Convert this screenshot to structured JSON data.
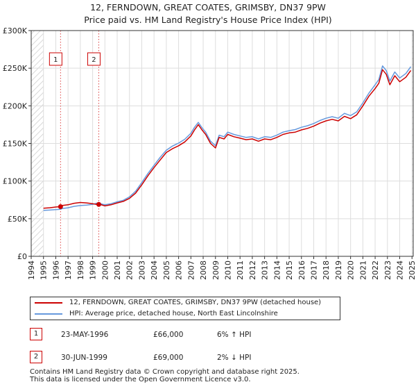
{
  "title_line1": "12, FERNDOWN, GREAT COATES, GRIMSBY, DN37 9PW",
  "title_line2": "Price paid vs. HM Land Registry's House Price Index (HPI)",
  "colors": {
    "property": "#cc0000",
    "hpi": "#6699dd",
    "sale_vline": "#dd4444",
    "grid": "#dddddd",
    "hatch": "#cccccc"
  },
  "chart_data": {
    "type": "line",
    "title": "12, FERNDOWN, GREAT COATES, GRIMSBY, DN37 9PW — Price paid vs. HM Land Registry's House Price Index (HPI)",
    "xlabel": "",
    "ylabel": "",
    "xlim": [
      1994,
      2025.1
    ],
    "ylim": [
      0,
      300000
    ],
    "y_ticks": [
      0,
      50000,
      100000,
      150000,
      200000,
      250000,
      300000
    ],
    "y_tick_labels": [
      "£0",
      "£50K",
      "£100K",
      "£150K",
      "£200K",
      "£250K",
      "£300K"
    ],
    "x_ticks": [
      1994,
      1995,
      1996,
      1997,
      1998,
      1999,
      2000,
      2001,
      2002,
      2003,
      2004,
      2005,
      2006,
      2007,
      2008,
      2009,
      2010,
      2011,
      2012,
      2013,
      2014,
      2015,
      2016,
      2017,
      2018,
      2019,
      2020,
      2021,
      2022,
      2023,
      2024,
      2025
    ],
    "grid": true,
    "hatched_regions": [
      [
        1994,
        1995
      ],
      [
        2025,
        2025.1
      ]
    ],
    "series": [
      {
        "name": "12, FERNDOWN, GREAT COATES, GRIMSBY, DN37 9PW (detached house)",
        "color": "#cc0000",
        "x": [
          1995,
          1995.5,
          1996,
          1996.4,
          1996.5,
          1997,
          1997.5,
          1998,
          1998.5,
          1999,
          1999.3,
          1999.5,
          2000,
          2000.5,
          2001,
          2001.5,
          2002,
          2002.5,
          2003,
          2003.5,
          2004,
          2004.5,
          2005,
          2005.5,
          2006,
          2006.5,
          2007,
          2007.3,
          2007.6,
          2007.9,
          2008.2,
          2008.6,
          2009,
          2009.3,
          2009.7,
          2010,
          2010.5,
          2011,
          2011.5,
          2012,
          2012.5,
          2013,
          2013.5,
          2014,
          2014.5,
          2015,
          2015.5,
          2016,
          2016.5,
          2017,
          2017.5,
          2018,
          2018.5,
          2019,
          2019.5,
          2020,
          2020.5,
          2021,
          2021.5,
          2022,
          2022.3,
          2022.6,
          2022.9,
          2023.2,
          2023.6,
          2024,
          2024.5,
          2024.9
        ],
        "y": [
          64000,
          64500,
          65500,
          66000,
          67500,
          68500,
          70500,
          71500,
          71000,
          70000,
          69000,
          69500,
          67000,
          68500,
          71000,
          73000,
          77000,
          84000,
          95000,
          107000,
          118000,
          128000,
          138000,
          143000,
          147000,
          152000,
          160000,
          168000,
          175000,
          168000,
          162000,
          150000,
          144000,
          158000,
          156000,
          162000,
          159000,
          157000,
          155000,
          156000,
          153000,
          156000,
          155000,
          158000,
          162000,
          164000,
          165000,
          168000,
          170000,
          173000,
          177000,
          180000,
          182000,
          180000,
          186000,
          183000,
          188000,
          200000,
          213000,
          223000,
          230000,
          248000,
          242000,
          228000,
          240000,
          232000,
          238000,
          247000
        ]
      },
      {
        "name": "HPI: Average price, detached house, North East Lincolnshire",
        "color": "#6699dd",
        "x": [
          1995,
          1995.5,
          1996,
          1996.4,
          1996.5,
          1997,
          1997.5,
          1998,
          1998.5,
          1999,
          1999.3,
          1999.5,
          2000,
          2000.5,
          2001,
          2001.5,
          2002,
          2002.5,
          2003,
          2003.5,
          2004,
          2004.5,
          2005,
          2005.5,
          2006,
          2006.5,
          2007,
          2007.3,
          2007.6,
          2007.9,
          2008.2,
          2008.6,
          2009,
          2009.3,
          2009.7,
          2010,
          2010.5,
          2011,
          2011.5,
          2012,
          2012.5,
          2013,
          2013.5,
          2014,
          2014.5,
          2015,
          2015.5,
          2016,
          2016.5,
          2017,
          2017.5,
          2018,
          2018.5,
          2019,
          2019.5,
          2020,
          2020.5,
          2021,
          2021.5,
          2022,
          2022.3,
          2022.6,
          2022.9,
          2023.2,
          2023.6,
          2024,
          2024.5,
          2024.9
        ],
        "y": [
          61000,
          61500,
          62000,
          62500,
          63500,
          64500,
          66500,
          67500,
          68000,
          69000,
          70500,
          70500,
          68500,
          70000,
          72500,
          74500,
          79000,
          86500,
          98000,
          110000,
          121000,
          131500,
          141000,
          146500,
          150500,
          155500,
          163500,
          171500,
          178000,
          171000,
          165000,
          153000,
          147000,
          161000,
          159000,
          165000,
          162000,
          160000,
          158000,
          159000,
          156000,
          159000,
          158000,
          161000,
          165000,
          167000,
          168500,
          171500,
          173500,
          176500,
          180500,
          183500,
          185500,
          183500,
          190000,
          187000,
          192000,
          204000,
          217000,
          228000,
          235000,
          253000,
          247000,
          233000,
          245000,
          237000,
          243000,
          252000
        ]
      }
    ],
    "sales": [
      {
        "label": "1",
        "x": 1996.39,
        "y": 66000
      },
      {
        "label": "2",
        "x": 1999.5,
        "y": 69000
      }
    ],
    "legend_position": "below"
  },
  "legend": {
    "property_label": "12, FERNDOWN, GREAT COATES, GRIMSBY, DN37 9PW (detached house)",
    "hpi_label": "HPI: Average price, detached house, North East Lincolnshire"
  },
  "sales_table": [
    {
      "num": "1",
      "date": "23-MAY-1996",
      "price": "£66,000",
      "hpi": "6% ↑ HPI"
    },
    {
      "num": "2",
      "date": "30-JUN-1999",
      "price": "£69,000",
      "hpi": "2% ↓ HPI"
    }
  ],
  "footer_line1": "Contains HM Land Registry data © Crown copyright and database right 2025.",
  "footer_line2": "This data is licensed under the Open Government Licence v3.0."
}
